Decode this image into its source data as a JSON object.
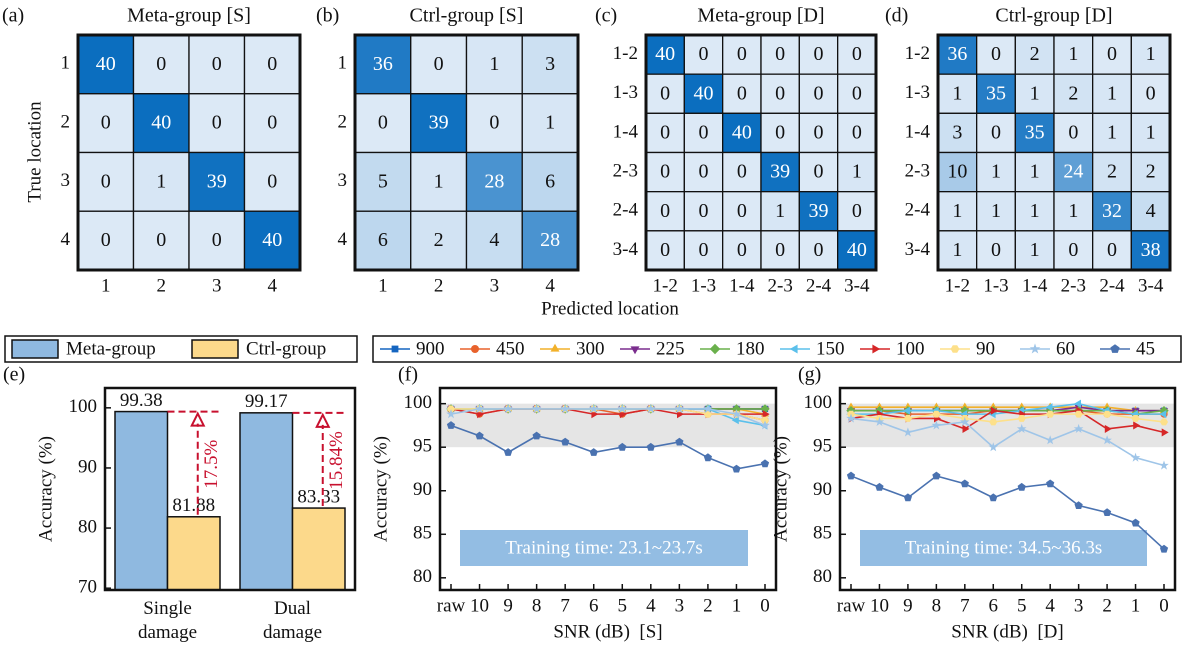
{
  "figure": {
    "xlabel": "Predicted location",
    "ylabel": "True location"
  },
  "chart_data": [
    {
      "type": "heatmap",
      "panel": "(a)",
      "title": "Meta-group [S]",
      "x_categories": [
        "1",
        "2",
        "3",
        "4"
      ],
      "y_categories": [
        "1",
        "2",
        "3",
        "4"
      ],
      "values": [
        [
          40,
          0,
          0,
          0
        ],
        [
          0,
          40,
          0,
          0
        ],
        [
          0,
          1,
          39,
          0
        ],
        [
          0,
          0,
          0,
          40
        ]
      ],
      "clim": [
        0,
        40
      ],
      "color_low": "#dce9f6",
      "color_high": "#0b6ebf"
    },
    {
      "type": "heatmap",
      "panel": "(b)",
      "title": "Ctrl-group [S]",
      "x_categories": [
        "1",
        "2",
        "3",
        "4"
      ],
      "y_categories": [
        "1",
        "2",
        "3",
        "4"
      ],
      "values": [
        [
          36,
          0,
          1,
          3
        ],
        [
          0,
          39,
          0,
          1
        ],
        [
          5,
          1,
          28,
          6
        ],
        [
          6,
          2,
          4,
          28
        ]
      ],
      "clim": [
        0,
        40
      ],
      "color_low": "#dce9f6",
      "color_high": "#0b6ebf"
    },
    {
      "type": "heatmap",
      "panel": "(c)",
      "title": "Meta-group [D]",
      "x_categories": [
        "1-2",
        "1-3",
        "1-4",
        "2-3",
        "2-4",
        "3-4"
      ],
      "y_categories": [
        "1-2",
        "1-3",
        "1-4",
        "2-3",
        "2-4",
        "3-4"
      ],
      "values": [
        [
          40,
          0,
          0,
          0,
          0,
          0
        ],
        [
          0,
          40,
          0,
          0,
          0,
          0
        ],
        [
          0,
          0,
          40,
          0,
          0,
          0
        ],
        [
          0,
          0,
          0,
          39,
          0,
          1
        ],
        [
          0,
          0,
          0,
          1,
          39,
          0
        ],
        [
          0,
          0,
          0,
          0,
          0,
          40
        ]
      ],
      "clim": [
        0,
        40
      ],
      "color_low": "#dce9f6",
      "color_high": "#0b6ebf"
    },
    {
      "type": "heatmap",
      "panel": "(d)",
      "title": "Ctrl-group [D]",
      "x_categories": [
        "1-2",
        "1-3",
        "1-4",
        "2-3",
        "2-4",
        "3-4"
      ],
      "y_categories": [
        "1-2",
        "1-3",
        "1-4",
        "2-3",
        "2-4",
        "3-4"
      ],
      "values": [
        [
          36,
          0,
          2,
          1,
          0,
          1
        ],
        [
          1,
          35,
          1,
          2,
          1,
          0
        ],
        [
          3,
          0,
          35,
          0,
          1,
          1
        ],
        [
          10,
          1,
          1,
          24,
          2,
          2
        ],
        [
          1,
          1,
          1,
          1,
          32,
          4
        ],
        [
          1,
          0,
          1,
          0,
          0,
          38
        ]
      ],
      "clim": [
        0,
        40
      ],
      "color_low": "#dce9f6",
      "color_high": "#0b6ebf"
    },
    {
      "type": "bar",
      "panel": "(e)",
      "ylabel": "Accuracy (%)",
      "categories": [
        "Single damage",
        "Dual damage"
      ],
      "series": [
        {
          "name": "Meta-group",
          "color": "#8fb9e0",
          "values": [
            99.38,
            99.17
          ]
        },
        {
          "name": "Ctrl-group",
          "color": "#fcd98b",
          "values": [
            81.88,
            83.33
          ]
        }
      ],
      "value_labels": [
        [
          "99.38",
          "99.17"
        ],
        [
          "81.88",
          "83.33"
        ]
      ],
      "annotations": [
        "17.5%",
        "15.84%"
      ],
      "annotation_color": "#c8102e",
      "ylim": [
        69.7,
        103.3
      ],
      "yticks": [
        70,
        80,
        90,
        100
      ]
    },
    {
      "type": "line",
      "panel": "(f)",
      "ylabel": "Accuracy (%)",
      "xlabel": "SNR (dB)  [S]",
      "note": "Training time: 23.1~23.7s",
      "categories": [
        "raw",
        "10",
        "9",
        "8",
        "7",
        "6",
        "5",
        "4",
        "3",
        "2",
        "1",
        "0"
      ],
      "ylim": [
        78.6,
        101.8
      ],
      "yticks": [
        80,
        85,
        90,
        95,
        100
      ],
      "shade": [
        95,
        100
      ],
      "series": [
        {
          "name": "900",
          "color": "#1565c0",
          "marker": "square",
          "values": [
            99.4,
            99.4,
            99.4,
            99.4,
            99.4,
            99.4,
            99.4,
            99.4,
            99.4,
            99.4,
            99.4,
            99.4
          ]
        },
        {
          "name": "450",
          "color": "#e8622c",
          "marker": "circle",
          "values": [
            99.4,
            98.8,
            99.4,
            99.4,
            99.4,
            99.4,
            98.8,
            99.4,
            99.4,
            98.8,
            98.8,
            98.1
          ]
        },
        {
          "name": "300",
          "color": "#f2b12a",
          "marker": "tri-up",
          "values": [
            99.4,
            99.4,
            99.4,
            99.4,
            99.4,
            99.4,
            99.4,
            99.4,
            99.4,
            99.4,
            99.4,
            98.8
          ]
        },
        {
          "name": "225",
          "color": "#7b2d8e",
          "marker": "tri-down",
          "values": [
            99.4,
            99.4,
            99.4,
            99.4,
            99.4,
            99.4,
            99.4,
            99.4,
            99.4,
            99.4,
            99.4,
            99.4
          ]
        },
        {
          "name": "180",
          "color": "#6ab04c",
          "marker": "diamond",
          "values": [
            99.4,
            99.4,
            99.4,
            99.4,
            99.4,
            99.4,
            99.4,
            99.4,
            99.4,
            99.4,
            99.4,
            99.4
          ]
        },
        {
          "name": "150",
          "color": "#5bc0eb",
          "marker": "tri-left",
          "values": [
            99.4,
            99.4,
            99.4,
            99.4,
            99.4,
            99.4,
            99.4,
            99.4,
            99.4,
            99.4,
            98.1,
            97.5
          ]
        },
        {
          "name": "100",
          "color": "#d62728",
          "marker": "tri-right",
          "values": [
            99.4,
            98.8,
            99.4,
            99.4,
            99.4,
            98.8,
            98.8,
            99.4,
            98.8,
            98.8,
            98.8,
            98.8
          ]
        },
        {
          "name": "90",
          "color": "#fde08a",
          "marker": "hexagon",
          "values": [
            99.4,
            99.4,
            99.4,
            99.4,
            99.4,
            99.4,
            99.4,
            99.4,
            99.4,
            98.8,
            98.8,
            98.1
          ]
        },
        {
          "name": "60",
          "color": "#9fc5e8",
          "marker": "star",
          "values": [
            98.8,
            99.4,
            99.4,
            99.4,
            99.4,
            99.4,
            99.4,
            99.4,
            99.4,
            99.4,
            98.8,
            97.5
          ]
        },
        {
          "name": "45",
          "color": "#4a72b0",
          "marker": "pentagon",
          "values": [
            97.5,
            96.3,
            94.4,
            96.3,
            95.6,
            94.4,
            95.0,
            95.0,
            95.6,
            93.8,
            92.5,
            93.1
          ]
        }
      ]
    },
    {
      "type": "line",
      "panel": "(g)",
      "ylabel": "Accuracy (%)",
      "xlabel": "SNR (dB)  [D]",
      "note": "Training time: 34.5~36.3s",
      "categories": [
        "raw",
        "10",
        "9",
        "8",
        "7",
        "6",
        "5",
        "4",
        "3",
        "2",
        "1",
        "0"
      ],
      "ylim": [
        78.6,
        101.8
      ],
      "yticks": [
        80,
        85,
        90,
        95,
        100
      ],
      "shade": [
        95,
        100
      ],
      "series": [
        {
          "name": "900",
          "color": "#1565c0",
          "marker": "square",
          "values": [
            99.2,
            99.2,
            99.2,
            99.2,
            99.2,
            99.2,
            99.2,
            99.2,
            99.2,
            99.2,
            99.2,
            99.2
          ]
        },
        {
          "name": "450",
          "color": "#e8622c",
          "marker": "circle",
          "values": [
            99.2,
            99.2,
            98.8,
            98.8,
            98.8,
            99.2,
            99.2,
            99.2,
            99.2,
            98.8,
            98.8,
            98.8
          ]
        },
        {
          "name": "300",
          "color": "#f2b12a",
          "marker": "tri-up",
          "values": [
            99.6,
            99.6,
            99.6,
            99.6,
            99.6,
            99.6,
            99.6,
            99.6,
            99.6,
            99.6,
            99.2,
            99.2
          ]
        },
        {
          "name": "225",
          "color": "#7b2d8e",
          "marker": "tri-down",
          "values": [
            99.2,
            99.2,
            99.2,
            99.2,
            99.2,
            99.2,
            99.2,
            99.2,
            99.6,
            99.2,
            99.2,
            99.2
          ]
        },
        {
          "name": "180",
          "color": "#6ab04c",
          "marker": "diamond",
          "values": [
            99.2,
            99.2,
            99.2,
            99.2,
            99.2,
            99.2,
            99.2,
            99.2,
            99.2,
            99.2,
            98.8,
            99.2
          ]
        },
        {
          "name": "150",
          "color": "#5bc0eb",
          "marker": "tri-left",
          "values": [
            98.8,
            98.8,
            99.2,
            99.2,
            98.8,
            98.8,
            99.2,
            99.6,
            100,
            99.2,
            98.8,
            98.8
          ]
        },
        {
          "name": "100",
          "color": "#d62728",
          "marker": "tri-right",
          "values": [
            98.3,
            98.8,
            98.3,
            98.3,
            97.1,
            99.2,
            98.8,
            98.8,
            99.2,
            97.1,
            97.5,
            96.7
          ]
        },
        {
          "name": "90",
          "color": "#fde08a",
          "marker": "hexagon",
          "values": [
            98.8,
            98.3,
            98.3,
            98.8,
            98.3,
            97.9,
            98.3,
            98.8,
            98.8,
            98.8,
            98.3,
            97.9
          ]
        },
        {
          "name": "60",
          "color": "#9fc5e8",
          "marker": "star",
          "values": [
            98.3,
            97.9,
            96.7,
            97.5,
            97.9,
            95.0,
            97.1,
            95.8,
            97.1,
            95.8,
            93.8,
            92.9
          ]
        },
        {
          "name": "45",
          "color": "#4a72b0",
          "marker": "pentagon",
          "values": [
            91.7,
            90.4,
            89.2,
            91.7,
            90.8,
            89.2,
            90.4,
            90.8,
            88.3,
            87.5,
            86.3,
            83.3
          ]
        }
      ]
    }
  ]
}
